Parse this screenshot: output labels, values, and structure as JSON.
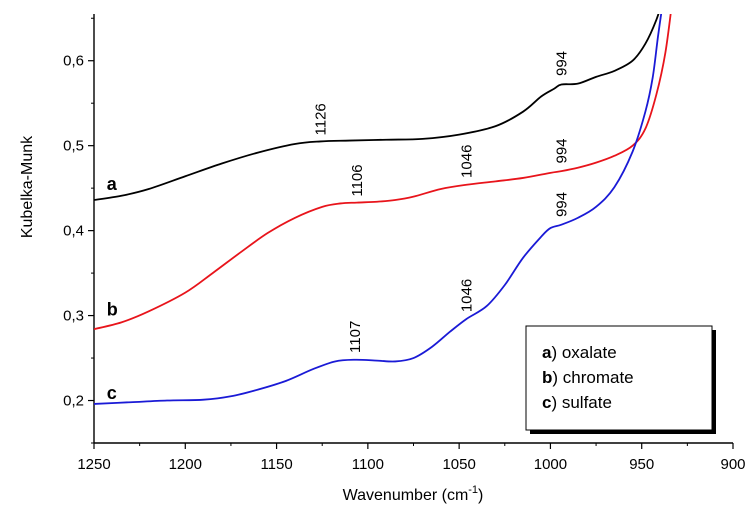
{
  "chart_data": {
    "type": "line",
    "xlabel": "Wavenumber (cm",
    "xlabel_sup": "-1",
    "xlabel_end": ")",
    "ylabel": "Kubelka-Munk",
    "xlim": [
      1250,
      900
    ],
    "ylim": [
      0.15,
      0.655
    ],
    "x_reversed": true,
    "x_ticks": [
      1250,
      1200,
      1150,
      1100,
      1050,
      1000,
      950,
      900
    ],
    "x_tick_labels": [
      "1250",
      "1200",
      "1150",
      "1100",
      "1050",
      "1000",
      "950",
      "900"
    ],
    "y_ticks": [
      0.2,
      0.3,
      0.4,
      0.5,
      0.6
    ],
    "y_tick_labels": [
      "0,2",
      "0,3",
      "0,4",
      "0,5",
      "0,6"
    ],
    "series": [
      {
        "name": "a",
        "color": "#000000",
        "x": [
          1250,
          1235,
          1220,
          1200,
          1180,
          1160,
          1140,
          1126,
          1110,
          1090,
          1070,
          1050,
          1030,
          1015,
          1005,
          998,
          994,
          985,
          975,
          965,
          955,
          948,
          942,
          938
        ],
        "y": [
          0.436,
          0.441,
          0.449,
          0.464,
          0.479,
          0.492,
          0.502,
          0.505,
          0.506,
          0.507,
          0.508,
          0.513,
          0.523,
          0.54,
          0.558,
          0.567,
          0.572,
          0.573,
          0.581,
          0.588,
          0.6,
          0.62,
          0.648,
          0.675
        ]
      },
      {
        "name": "b",
        "color": "#e8141b",
        "x": [
          1250,
          1235,
          1220,
          1200,
          1185,
          1170,
          1155,
          1140,
          1125,
          1115,
          1106,
          1095,
          1085,
          1075,
          1060,
          1046,
          1030,
          1015,
          1000,
          994,
          985,
          975,
          965,
          955,
          948,
          942,
          937,
          933
        ],
        "y": [
          0.284,
          0.292,
          0.305,
          0.327,
          0.35,
          0.374,
          0.397,
          0.415,
          0.428,
          0.432,
          0.433,
          0.434,
          0.436,
          0.44,
          0.449,
          0.454,
          0.458,
          0.462,
          0.468,
          0.47,
          0.474,
          0.48,
          0.488,
          0.5,
          0.52,
          0.56,
          0.61,
          0.675
        ]
      },
      {
        "name": "c",
        "color": "#1a1ad6",
        "x": [
          1250,
          1230,
          1210,
          1190,
          1175,
          1160,
          1145,
          1130,
          1118,
          1107,
          1095,
          1085,
          1075,
          1065,
          1055,
          1046,
          1035,
          1025,
          1015,
          1005,
          1000,
          994,
          985,
          975,
          965,
          955,
          948,
          944,
          941,
          938
        ],
        "y": [
          0.196,
          0.198,
          0.2,
          0.201,
          0.205,
          0.213,
          0.223,
          0.237,
          0.246,
          0.248,
          0.247,
          0.246,
          0.25,
          0.263,
          0.281,
          0.296,
          0.311,
          0.336,
          0.368,
          0.393,
          0.403,
          0.407,
          0.415,
          0.428,
          0.451,
          0.493,
          0.54,
          0.58,
          0.63,
          0.675
        ]
      }
    ],
    "curve_letters": [
      {
        "text": "a",
        "x": 1243,
        "y": 0.448
      },
      {
        "text": "b",
        "x": 1243,
        "y": 0.3
      },
      {
        "text": "c",
        "x": 1243,
        "y": 0.202
      }
    ],
    "peak_annotations": [
      {
        "text": "1126",
        "x": 1126,
        "y": 0.512
      },
      {
        "text": "994",
        "x": 994,
        "y": 0.582
      },
      {
        "text": "1106",
        "x": 1106,
        "y": 0.44
      },
      {
        "text": "1046",
        "x": 1046,
        "y": 0.462
      },
      {
        "text": "994",
        "x": 994,
        "y": 0.479
      },
      {
        "text": "994",
        "x": 994,
        "y": 0.416
      },
      {
        "text": "1046",
        "x": 1046,
        "y": 0.304
      },
      {
        "text": "1107",
        "x": 1107,
        "y": 0.256
      }
    ],
    "legend": {
      "position": "bottom-right",
      "items": [
        {
          "letter": "a",
          "label": ") oxalate"
        },
        {
          "letter": "b",
          "label": ") chromate"
        },
        {
          "letter": "c",
          "label": ") sulfate"
        }
      ]
    },
    "grid": false
  }
}
